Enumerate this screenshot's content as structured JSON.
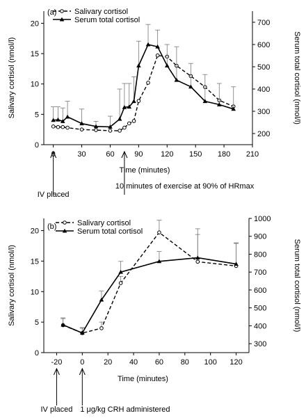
{
  "chart_data": [
    {
      "type": "line",
      "panel_label": "(a)",
      "xlabel": "Time (minutes)",
      "ylabel": "Salivary cortisol (nmol/l)",
      "y2label": "Serum total cortisol (nmol/l)",
      "xlim": [
        -10,
        210
      ],
      "ylim": [
        0,
        22
      ],
      "y2lim": [
        150,
        750
      ],
      "xticks": [
        0,
        30,
        60,
        90,
        120,
        150,
        180,
        210
      ],
      "yticks": [
        0,
        5,
        10,
        15,
        20
      ],
      "y2ticks": [
        200,
        300,
        400,
        500,
        600,
        700
      ],
      "legend_position": "top-left",
      "series": [
        {
          "name": "Salivary cortisol",
          "style": "dashed, open circle",
          "axis": "left",
          "x": [
            0,
            5,
            10,
            15,
            30,
            45,
            60,
            70,
            75,
            80,
            85,
            90,
            100,
            110,
            120,
            130,
            145,
            160,
            175,
            190
          ],
          "y": [
            3.0,
            2.9,
            2.9,
            2.8,
            2.5,
            2.4,
            2.3,
            2.3,
            2.8,
            3.5,
            3.9,
            7.2,
            10.2,
            14.7,
            14.5,
            13.0,
            11.3,
            9.5,
            7.3,
            6.3
          ]
        },
        {
          "name": "Serum total cortisol",
          "style": "solid, filled triangle",
          "axis": "right",
          "x": [
            0,
            5,
            10,
            15,
            30,
            45,
            60,
            70,
            75,
            80,
            85,
            90,
            100,
            110,
            120,
            130,
            145,
            160,
            175,
            190
          ],
          "y": [
            260,
            262,
            255,
            275,
            245,
            232,
            230,
            265,
            318,
            320,
            345,
            505,
            600,
            590,
            505,
            440,
            410,
            345,
            330,
            310
          ],
          "err_upper": [
            320,
            320,
            315,
            345,
            310,
            255,
            278,
            400,
            425,
            425,
            455,
            615,
            690,
            665,
            600,
            590,
            515,
            465,
            425,
            410
          ]
        }
      ],
      "annotations": [
        {
          "text": "IV placed",
          "x": 0
        },
        {
          "text": "10 minutes of exercise at 90% of HRmax",
          "x": 75
        }
      ]
    },
    {
      "type": "line",
      "panel_label": "(b)",
      "xlabel": "Time (minutes)",
      "ylabel": "Salivary cortisol (nmol/l)",
      "y2label": "Serum total cortisol (nmol/l)",
      "xlim": [
        -30,
        130
      ],
      "ylim": [
        0,
        22
      ],
      "y2lim": [
        250,
        1000
      ],
      "xticks": [
        -20,
        0,
        20,
        40,
        60,
        80,
        100,
        120
      ],
      "yticks": [
        0,
        5,
        10,
        15,
        20
      ],
      "y2ticks": [
        300,
        400,
        500,
        600,
        700,
        800,
        900,
        1000
      ],
      "legend_position": "top-left",
      "series": [
        {
          "name": "Salivary cortisol",
          "style": "dashed, open circle",
          "axis": "left",
          "x": [
            -15,
            0,
            15,
            30,
            60,
            90,
            120
          ],
          "y": [
            4.5,
            3.2,
            4.0,
            11.4,
            19.7,
            14.9,
            14.2
          ],
          "err_upper": [
            5.7,
            4.0,
            5.0,
            12.5,
            21.7,
            20.3,
            18.0
          ]
        },
        {
          "name": "Serum total cortisol",
          "style": "solid, filled triangle",
          "axis": "right",
          "x": [
            -15,
            0,
            15,
            30,
            60,
            90,
            120
          ],
          "y": [
            405,
            360,
            545,
            700,
            760,
            780,
            745
          ],
          "err_upper": [
            440,
            390,
            595,
            760,
            815,
            910,
            860
          ]
        }
      ],
      "annotations": [
        {
          "text": "IV placed",
          "x": -20
        },
        {
          "text": "1 μg/kg CRH administered",
          "x": 0
        }
      ]
    }
  ]
}
